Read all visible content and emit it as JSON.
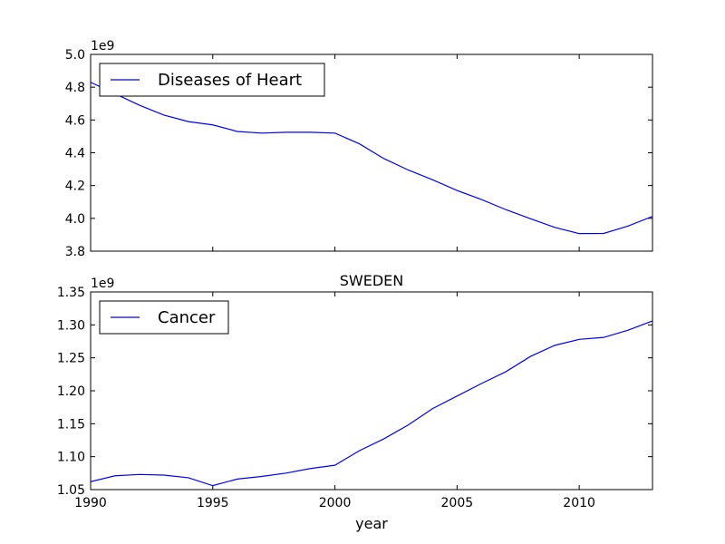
{
  "chart_data": [
    {
      "type": "line",
      "title": "",
      "xlabel": "",
      "ylabel": "",
      "offset_label": "1e9",
      "xlim": [
        1990,
        2013
      ],
      "ylim": [
        3.8,
        5.0
      ],
      "xticks": [],
      "yticks": [
        "3.8",
        "4.0",
        "4.2",
        "4.4",
        "4.6",
        "4.8",
        "5.0"
      ],
      "grid": false,
      "legend_position": "top-left",
      "color": "#0000ff",
      "series": [
        {
          "name": "Diseases of Heart",
          "x": [
            1990,
            1991,
            1992,
            1993,
            1994,
            1995,
            1996,
            1997,
            1998,
            1999,
            2000,
            2001,
            2002,
            2003,
            2004,
            2005,
            2006,
            2007,
            2008,
            2009,
            2010,
            2011,
            2012,
            2013
          ],
          "values": [
            4.83,
            4.76,
            4.69,
            4.63,
            4.59,
            4.57,
            4.53,
            4.52,
            4.525,
            4.525,
            4.52,
            4.455,
            4.365,
            4.295,
            4.235,
            4.17,
            4.115,
            4.053,
            3.998,
            3.945,
            3.907,
            3.908,
            3.953,
            4.012
          ]
        }
      ]
    },
    {
      "type": "line",
      "title": "SWEDEN",
      "xlabel": "year",
      "ylabel": "",
      "offset_label": "1e9",
      "xlim": [
        1990,
        2013
      ],
      "ylim": [
        1.05,
        1.35
      ],
      "xticks": [
        "1990",
        "1995",
        "2000",
        "2005",
        "2010"
      ],
      "yticks": [
        "1.05",
        "1.10",
        "1.15",
        "1.20",
        "1.25",
        "1.30",
        "1.35"
      ],
      "grid": false,
      "legend_position": "top-left",
      "color": "#0000ff",
      "series": [
        {
          "name": "Cancer",
          "x": [
            1990,
            1991,
            1992,
            1993,
            1994,
            1995,
            1996,
            1997,
            1998,
            1999,
            2000,
            2001,
            2002,
            2003,
            2004,
            2005,
            2006,
            2007,
            2008,
            2009,
            2010,
            2011,
            2012,
            2013
          ],
          "values": [
            1.062,
            1.071,
            1.073,
            1.072,
            1.068,
            1.056,
            1.066,
            1.07,
            1.075,
            1.082,
            1.087,
            1.109,
            1.127,
            1.148,
            1.173,
            1.192,
            1.211,
            1.229,
            1.252,
            1.269,
            1.278,
            1.281,
            1.292,
            1.306
          ]
        }
      ]
    }
  ]
}
